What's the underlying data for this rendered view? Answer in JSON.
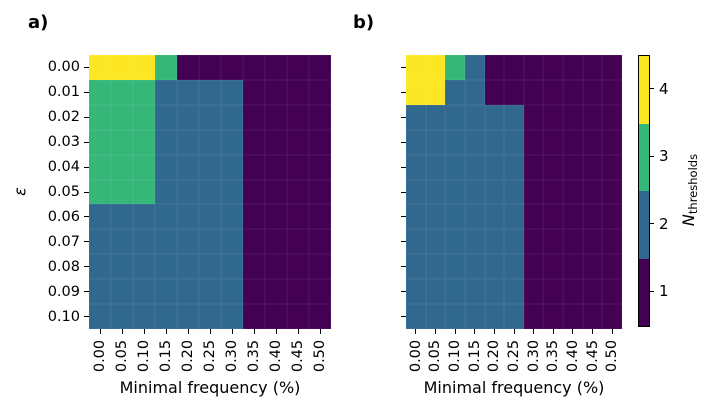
{
  "figure": {
    "background": "#ffffff",
    "palette": {
      "1": "#440154",
      "2": "#31688e",
      "3": "#35b779",
      "4": "#fde725"
    }
  },
  "chart_data": [
    {
      "type": "heatmap",
      "panel_label": "a)",
      "xlabel": "Minimal frequency (%)",
      "ylabel": "ε",
      "x_ticks": [
        "0.00",
        "0.05",
        "0.10",
        "0.15",
        "0.20",
        "0.25",
        "0.30",
        "0.35",
        "0.40",
        "0.45",
        "0.50"
      ],
      "y_ticks": [
        "0.00",
        "0.01",
        "0.02",
        "0.03",
        "0.04",
        "0.05",
        "0.06",
        "0.07",
        "0.08",
        "0.09",
        "0.10"
      ],
      "show_y_tick_labels": true,
      "values": [
        [
          4,
          4,
          4,
          3,
          1,
          1,
          1,
          1,
          1,
          1,
          1
        ],
        [
          3,
          3,
          3,
          2,
          2,
          2,
          2,
          1,
          1,
          1,
          1
        ],
        [
          3,
          3,
          3,
          2,
          2,
          2,
          2,
          1,
          1,
          1,
          1
        ],
        [
          3,
          3,
          3,
          2,
          2,
          2,
          2,
          1,
          1,
          1,
          1
        ],
        [
          3,
          3,
          3,
          2,
          2,
          2,
          2,
          1,
          1,
          1,
          1
        ],
        [
          3,
          3,
          3,
          2,
          2,
          2,
          2,
          1,
          1,
          1,
          1
        ],
        [
          2,
          2,
          2,
          2,
          2,
          2,
          2,
          1,
          1,
          1,
          1
        ],
        [
          2,
          2,
          2,
          2,
          2,
          2,
          2,
          1,
          1,
          1,
          1
        ],
        [
          2,
          2,
          2,
          2,
          2,
          2,
          2,
          1,
          1,
          1,
          1
        ],
        [
          2,
          2,
          2,
          2,
          2,
          2,
          2,
          1,
          1,
          1,
          1
        ],
        [
          2,
          2,
          2,
          2,
          2,
          2,
          2,
          1,
          1,
          1,
          1
        ]
      ]
    },
    {
      "type": "heatmap",
      "panel_label": "b)",
      "xlabel": "Minimal frequency (%)",
      "ylabel": "",
      "x_ticks": [
        "0.00",
        "0.05",
        "0.10",
        "0.15",
        "0.20",
        "0.25",
        "0.30",
        "0.35",
        "0.40",
        "0.45",
        "0.50"
      ],
      "y_ticks": [
        "0.00",
        "0.01",
        "0.02",
        "0.03",
        "0.04",
        "0.05",
        "0.06",
        "0.07",
        "0.08",
        "0.09",
        "0.10"
      ],
      "show_y_tick_labels": false,
      "values": [
        [
          4,
          4,
          3,
          2,
          1,
          1,
          1,
          1,
          1,
          1,
          1
        ],
        [
          4,
          4,
          2,
          2,
          1,
          1,
          1,
          1,
          1,
          1,
          1
        ],
        [
          2,
          2,
          2,
          2,
          2,
          2,
          1,
          1,
          1,
          1,
          1
        ],
        [
          2,
          2,
          2,
          2,
          2,
          2,
          1,
          1,
          1,
          1,
          1
        ],
        [
          2,
          2,
          2,
          2,
          2,
          2,
          1,
          1,
          1,
          1,
          1
        ],
        [
          2,
          2,
          2,
          2,
          2,
          2,
          1,
          1,
          1,
          1,
          1
        ],
        [
          2,
          2,
          2,
          2,
          2,
          2,
          1,
          1,
          1,
          1,
          1
        ],
        [
          2,
          2,
          2,
          2,
          2,
          2,
          1,
          1,
          1,
          1,
          1
        ],
        [
          2,
          2,
          2,
          2,
          2,
          2,
          1,
          1,
          1,
          1,
          1
        ],
        [
          2,
          2,
          2,
          2,
          2,
          2,
          1,
          1,
          1,
          1,
          1
        ],
        [
          2,
          2,
          2,
          2,
          2,
          2,
          1,
          1,
          1,
          1,
          1
        ]
      ]
    }
  ],
  "colorbar": {
    "label_main": "N",
    "label_sub": "thresholds",
    "tick_labels_top_to_bottom": [
      "4",
      "3",
      "2",
      "1"
    ],
    "segments_top_to_bottom": [
      "4",
      "3",
      "2",
      "1"
    ]
  }
}
